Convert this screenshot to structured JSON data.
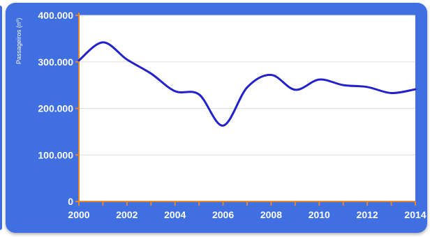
{
  "chart_data": {
    "type": "line",
    "title": "",
    "xlabel": "",
    "ylabel": "Passageiros (nº)",
    "x": [
      2000,
      2001,
      2002,
      2003,
      2004,
      2005,
      2006,
      2007,
      2008,
      2009,
      2010,
      2011,
      2012,
      2013,
      2014
    ],
    "series": [
      {
        "name": "",
        "values": [
          303000,
          342000,
          305000,
          275000,
          237000,
          230000,
          163000,
          245000,
          272000,
          240000,
          262000,
          250000,
          246000,
          233000,
          241000
        ]
      }
    ],
    "xlim": [
      2000,
      2014
    ],
    "ylim": [
      0,
      400000
    ],
    "x_ticks": [
      2000,
      2002,
      2004,
      2006,
      2008,
      2010,
      2012,
      2014
    ],
    "x_tick_labels": [
      "2000",
      "2002",
      "2004",
      "2006",
      "2008",
      "2010",
      "2012",
      "2014"
    ],
    "y_ticks": [
      0,
      100000,
      200000,
      300000,
      400000
    ],
    "y_tick_labels": [
      "0",
      "100.000",
      "200.000",
      "300.000",
      "400.000"
    ],
    "grid": true,
    "legend": "none"
  },
  "colors": {
    "panel": "#3f6fe0",
    "plot_background": "#ffffff",
    "line": "#2222cc",
    "axis": "#e8872a",
    "grid": "#dddddd",
    "text": "#ffffff"
  }
}
